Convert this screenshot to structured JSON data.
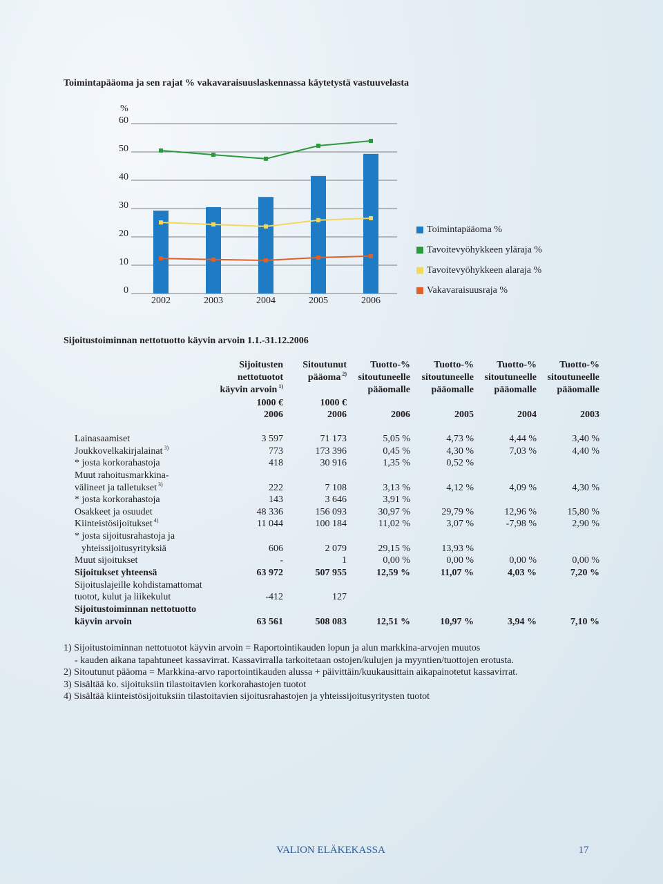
{
  "chart_data": {
    "type": "bar",
    "title": "Toimintapääoma ja sen rajat %  vakavaraisuuslaskennassa käytetystä vastuuvelasta",
    "y_label": "%",
    "categories": [
      "2002",
      "2003",
      "2004",
      "2005",
      "2006"
    ],
    "series": [
      {
        "name": "Toimintapääoma %",
        "type": "bar",
        "color": "#1f7bc4",
        "values": [
          29.3,
          30.5,
          34.1,
          41.5,
          49.3
        ]
      },
      {
        "name": "Tavoitevyöhykkeen yläraja %",
        "type": "line",
        "color": "#2a9a3a",
        "values": [
          50.5,
          49.0,
          47.6,
          52.2,
          53.9
        ]
      },
      {
        "name": "Tavoitevyöhykkeen alaraja %",
        "type": "line",
        "color": "#f2d95e",
        "values": [
          25.1,
          24.4,
          23.7,
          25.9,
          26.6
        ]
      },
      {
        "name": "Vakavaraisuusraja %",
        "type": "line",
        "color": "#e0602a",
        "values": [
          12.4,
          12.0,
          11.7,
          12.7,
          13.2
        ]
      }
    ],
    "ylim": [
      0,
      60
    ],
    "yticks": [
      0,
      10,
      20,
      30,
      40,
      50,
      60
    ],
    "grid": true
  },
  "table": {
    "title": "Sijoitustoiminnan nettotuotto käyvin arvoin 1.1.-31.12.2006",
    "columns": [
      {
        "lines": [
          "Sijoitusten",
          "nettotuotot",
          "käyvin arvoin"
        ],
        "sup": "1)",
        "unit": "1000 €",
        "year": "2006"
      },
      {
        "lines": [
          "Sitoutunut",
          "pääoma"
        ],
        "sup": "2)",
        "unit": "1000 €",
        "year": "2006"
      },
      {
        "lines": [
          "Tuotto-%",
          "sitoutuneelle",
          "pääomalle"
        ],
        "year": "2006"
      },
      {
        "lines": [
          "Tuotto-%",
          "sitoutuneelle",
          "pääomalle"
        ],
        "year": "2005"
      },
      {
        "lines": [
          "Tuotto-%",
          "sitoutuneelle",
          "pääomalle"
        ],
        "year": "2004"
      },
      {
        "lines": [
          "Tuotto-%",
          "sitoutuneelle",
          "pääomalle"
        ],
        "year": "2003"
      }
    ],
    "rows": [
      {
        "label": [
          "Lainasaamiset"
        ],
        "cells": [
          "3 597",
          "71 173",
          "5,05 %",
          "4,73 %",
          "4,44 %",
          "3,40 %"
        ]
      },
      {
        "label": [
          "Joukkovelkakirjalainat"
        ],
        "sup": "3)",
        "cells": [
          "773",
          "173 396",
          "0,45 %",
          "4,30 %",
          "7,03 %",
          "4,40 %"
        ]
      },
      {
        "label": [
          "* josta korkorahastoja"
        ],
        "cells": [
          "418",
          "30 916",
          "1,35 %",
          "0,52 %"
        ]
      },
      {
        "label": [
          "Muut rahoitusmarkkina-",
          "välineet ja talletukset"
        ],
        "sup": "3)",
        "cells": [
          "222",
          "7 108",
          "3,13 %",
          "4,12 %",
          "4,09 %",
          "4,30 %"
        ]
      },
      {
        "label": [
          "* josta korkorahastoja"
        ],
        "cells": [
          "143",
          "3 646",
          "3,91 %"
        ]
      },
      {
        "label": [
          "Osakkeet ja osuudet"
        ],
        "cells": [
          "48 336",
          "156 093",
          "30,97 %",
          "29,79 %",
          "12,96 %",
          "15,80 %"
        ]
      },
      {
        "label": [
          "Kiinteistösijoitukset"
        ],
        "sup": "4)",
        "cells": [
          "11 044",
          "100 184",
          "11,02 %",
          "3,07 %",
          "-7,98 %",
          "2,90 %"
        ]
      },
      {
        "label": [
          "* josta sijoitusrahastoja ja",
          "yhteissijoitusyrityksiä"
        ],
        "cells": [
          "606",
          "2 079",
          "29,15 %",
          "13,93 %"
        ]
      },
      {
        "label": [
          "Muut sijoitukset"
        ],
        "cells": [
          "-",
          "1",
          "0,00 %",
          "0,00 %",
          "0,00 %",
          "0,00 %"
        ]
      },
      {
        "label": [
          "Sijoitukset yhteensä"
        ],
        "bold": true,
        "cells": [
          "63 972",
          "507 955",
          "12,59 %",
          "11,07 %",
          "4,03 %",
          "7,20 %"
        ]
      },
      {
        "label": [
          "Sijoituslajeille kohdistamattomat",
          "tuotot, kulut ja liikekulut"
        ],
        "cells": [
          "-412",
          "127"
        ]
      },
      {
        "label": [
          "Sijoitustoiminnan nettotuotto",
          "käyvin arvoin"
        ],
        "bold": true,
        "cells": [
          "63 561",
          "508 083",
          "12,51 %",
          "10,97 %",
          "3,94 %",
          "7,10 %"
        ]
      }
    ]
  },
  "footnotes": [
    "1) Sijoitustoiminnan nettotuotot käyvin arvoin = Raportointikauden lopun ja alun markkina-arvojen muutos",
    "- kauden aikana tapahtuneet kassavirrat. Kassavirralla tarkoitetaan ostojen/kulujen ja myyntien/tuottojen erotusta.",
    "2) Sitoutunut pääoma = Markkina-arvo raportointikauden alussa + päivittäin/kuukausittain aikapainotetut kassavirrat.",
    "3) Sisältää ko. sijoituksiin tilastoitavien korkorahastojen tuotot",
    "4) Sisältää kiinteistösijoituksiin tilastoitavien sijoitusrahastojen ja yhteissijoitusyritysten tuotot"
  ],
  "footer": {
    "publisher": "VALION ELÄKEKASSA",
    "page": "17"
  }
}
